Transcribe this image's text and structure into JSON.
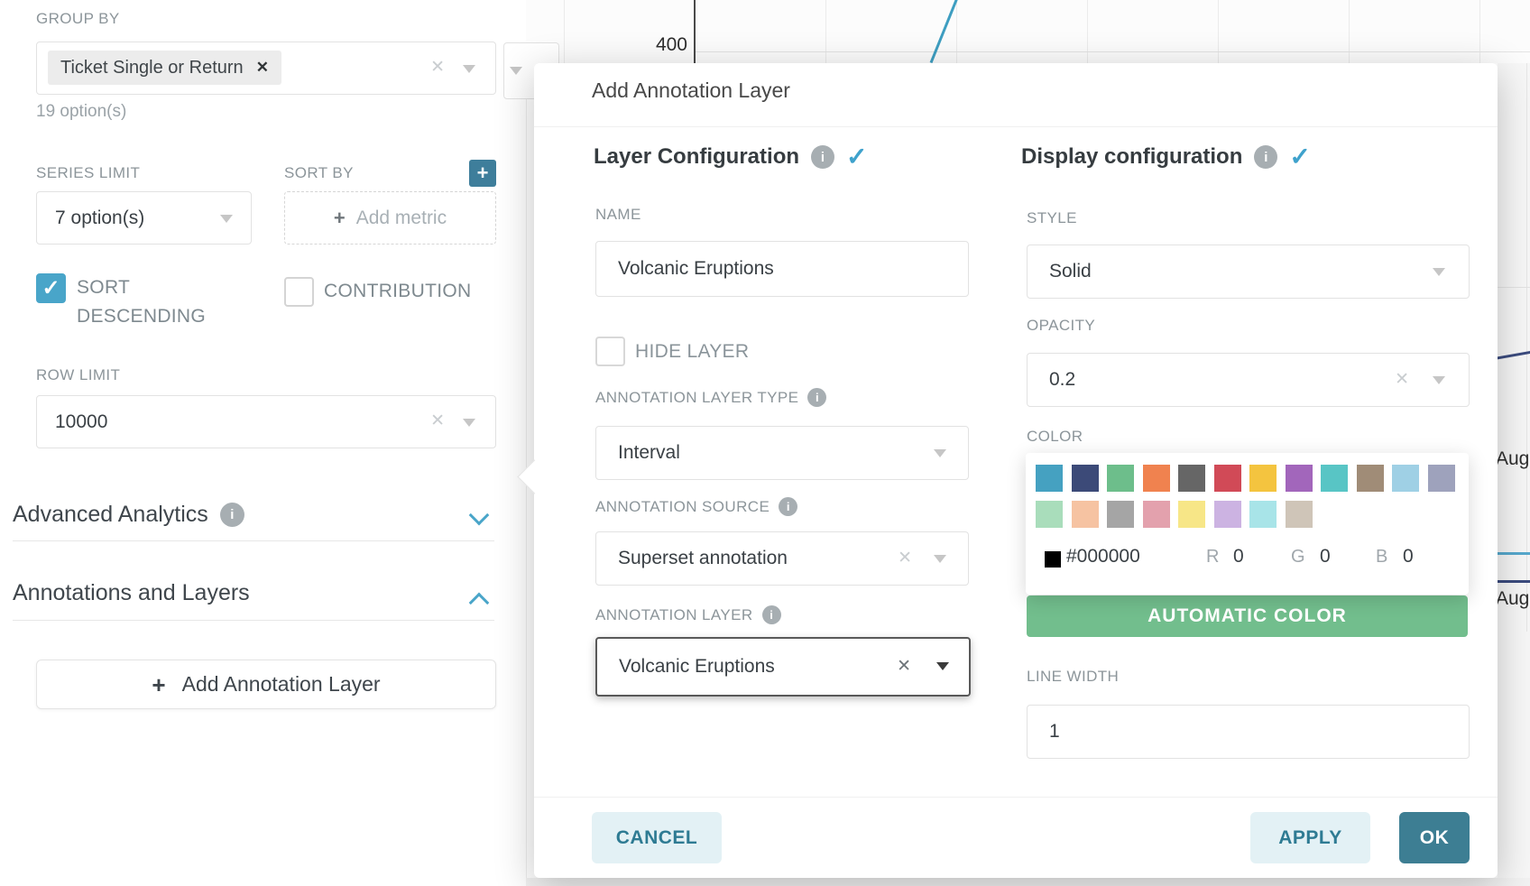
{
  "icons": {
    "close": "✕",
    "check": "✓",
    "plus": "+",
    "info": "i"
  },
  "left_panel": {
    "group_by": {
      "label": "GROUP BY",
      "tag": "Ticket Single or Return",
      "hint": "19 option(s)"
    },
    "series_limit": {
      "label": "SERIES LIMIT",
      "value": "7 option(s)"
    },
    "sort_by": {
      "label": "SORT BY",
      "placeholder": "Add metric"
    },
    "sort_descending": {
      "label": "SORT DESCENDING",
      "checked": true
    },
    "contribution": {
      "label": "CONTRIBUTION",
      "checked": false
    },
    "row_limit": {
      "label": "ROW LIMIT",
      "value": "10000"
    },
    "advanced_analytics": {
      "label": "Advanced Analytics"
    },
    "annotations_and_layers": {
      "label": "Annotations and Layers"
    },
    "add_annotation_layer": {
      "label": "Add Annotation Layer"
    }
  },
  "chart": {
    "y_tick": "400",
    "x_tick_upper": "Aug",
    "x_tick_lower": "Aug"
  },
  "modal": {
    "title": "Add Annotation Layer",
    "layer_configuration": {
      "heading": "Layer Configuration",
      "name": {
        "label": "NAME",
        "value": "Volcanic Eruptions"
      },
      "hide_layer": {
        "label": "HIDE LAYER",
        "checked": false
      },
      "layer_type": {
        "label": "ANNOTATION LAYER TYPE",
        "value": "Interval"
      },
      "source": {
        "label": "ANNOTATION SOURCE",
        "value": "Superset annotation"
      },
      "layer": {
        "label": "ANNOTATION LAYER",
        "value": "Volcanic Eruptions"
      }
    },
    "display_configuration": {
      "heading": "Display configuration",
      "style": {
        "label": "STYLE",
        "value": "Solid"
      },
      "opacity": {
        "label": "OPACITY",
        "value": "0.2"
      },
      "color": {
        "label": "COLOR"
      },
      "automatic_color": "AUTOMATIC COLOR",
      "line_width": {
        "label": "LINE WIDTH",
        "value": "1"
      }
    },
    "color_picker": {
      "row1": [
        "#45A1C1",
        "#3C4A78",
        "#6DBE8B",
        "#F0824F",
        "#666666",
        "#D14A57",
        "#F4C43F",
        "#A266BB",
        "#58C5C5",
        "#A08C77",
        "#9FD0E5",
        "#9EA2BC"
      ],
      "row2": [
        "#A9DDBB",
        "#F6C3A2",
        "#A5A5A5",
        "#E3A1AD",
        "#F7E687",
        "#CCB3E2",
        "#A8E4E8",
        "#CFC5B8"
      ],
      "selected_hex": "#000000",
      "hex_value": "#000000",
      "r_label": "R",
      "r_value": "0",
      "g_label": "G",
      "g_value": "0",
      "b_label": "B",
      "b_value": "0"
    },
    "footer": {
      "cancel": "CANCEL",
      "apply": "APPLY",
      "ok": "OK"
    }
  },
  "colors": {
    "accent": "#49A5C9",
    "primary_teal": "#3D7E93",
    "cancel_bg": "#E3F1F5",
    "automatic_color_green": "#72BE8D",
    "plus_button": "#3E7E9B",
    "line_blue": "#3E9EC1",
    "line_navy": "#3B4B7E"
  }
}
